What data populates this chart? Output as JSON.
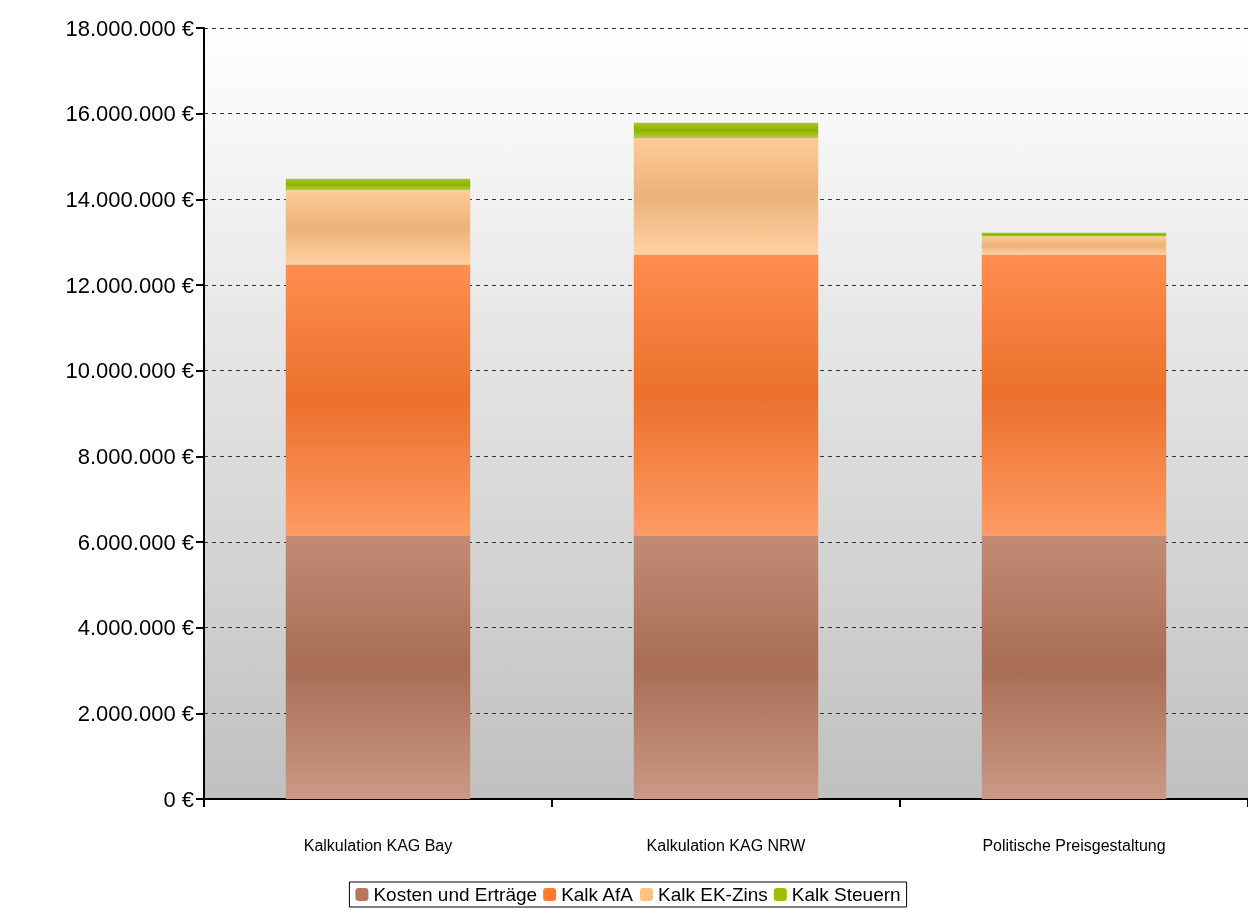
{
  "chart_data": {
    "type": "bar",
    "stacked": true,
    "categories": [
      "Kalkulation KAG Bay",
      "Kalkulation KAG NRW",
      "Politische Preisgestaltung"
    ],
    "series": [
      {
        "name": "Kosten und Erträge",
        "color": "#b8775c",
        "values": [
          6150000,
          6150000,
          6150000
        ]
      },
      {
        "name": "Kalk AfA",
        "color": "#ff7a30",
        "values": [
          6330000,
          6560000,
          6560000
        ]
      },
      {
        "name": "Kalk EK-Zins",
        "color": "#ffc283",
        "values": [
          1730000,
          2720000,
          420000
        ]
      },
      {
        "name": "Kalk Steuern",
        "color": "#99c000",
        "values": [
          270000,
          360000,
          90000
        ]
      }
    ],
    "ylim": [
      0,
      18000000
    ],
    "yticks": [
      {
        "value": 0,
        "label": "0 €"
      },
      {
        "value": 2000000,
        "label": "2.000.000 €"
      },
      {
        "value": 4000000,
        "label": "4.000.000 €"
      },
      {
        "value": 6000000,
        "label": "6.000.000 €"
      },
      {
        "value": 8000000,
        "label": "8.000.000 €"
      },
      {
        "value": 10000000,
        "label": "10.000.000 €"
      },
      {
        "value": 12000000,
        "label": "12.000.000 €"
      },
      {
        "value": 14000000,
        "label": "14.000.000 €"
      },
      {
        "value": 16000000,
        "label": "16.000.000 €"
      },
      {
        "value": 18000000,
        "label": "18.000.000 €"
      }
    ],
    "grid": "y",
    "legend": "bottom"
  }
}
